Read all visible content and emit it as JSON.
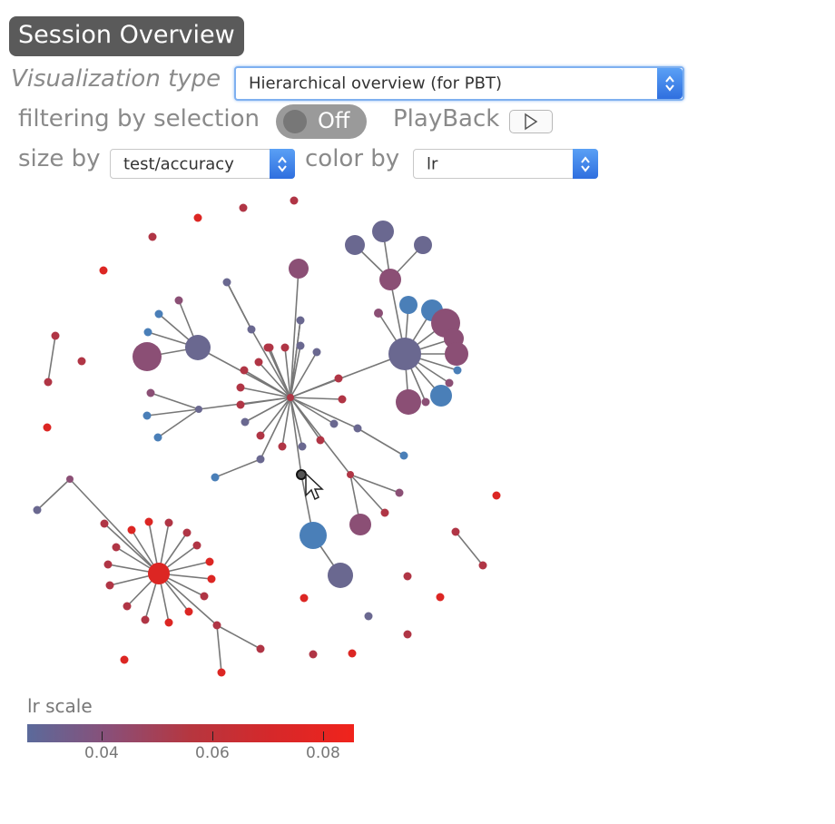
{
  "header": {
    "title": "Session Overview"
  },
  "controls": {
    "viz_label": "Visualization type",
    "viz_value": "Hierarchical overview (for PBT)",
    "filter_label": "filtering by selection",
    "filter_toggle": "Off",
    "playback_label": "PlayBack",
    "size_label": "size by",
    "size_value": "test/accuracy",
    "color_label": "color by",
    "color_value": "lr"
  },
  "legend": {
    "title": "lr scale",
    "ticks": [
      "0.04",
      "0.06",
      "0.08"
    ]
  },
  "colors": {
    "blue": "#4a7fb8",
    "slate": "#6a6890",
    "mauve": "#8b4f75",
    "crimson": "#b03545",
    "red": "#dc2623",
    "edge": "#777777"
  }
}
